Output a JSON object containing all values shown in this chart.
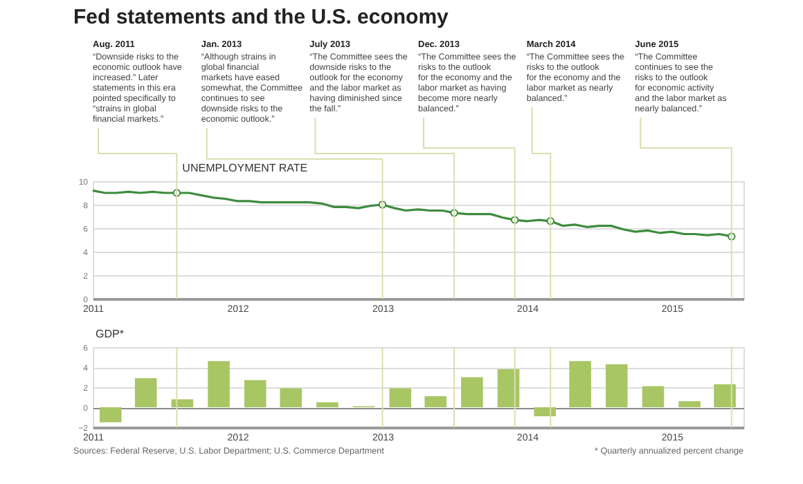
{
  "chart_data": [
    {
      "type": "line",
      "title": "Fed statements and the U.S. economy",
      "ylabel": "UNEMPLOYMENT RATE",
      "x": [
        "2011-01",
        "2011-02",
        "2011-03",
        "2011-04",
        "2011-05",
        "2011-06",
        "2011-07",
        "2011-08",
        "2011-09",
        "2011-10",
        "2011-11",
        "2011-12",
        "2012-01",
        "2012-02",
        "2012-03",
        "2012-04",
        "2012-05",
        "2012-06",
        "2012-07",
        "2012-08",
        "2012-09",
        "2012-10",
        "2012-11",
        "2012-12",
        "2013-01",
        "2013-02",
        "2013-03",
        "2013-04",
        "2013-05",
        "2013-06",
        "2013-07",
        "2013-08",
        "2013-09",
        "2013-10",
        "2013-11",
        "2013-12",
        "2014-01",
        "2014-02",
        "2014-03",
        "2014-04",
        "2014-05",
        "2014-06",
        "2014-07",
        "2014-08",
        "2014-09",
        "2014-10",
        "2014-11",
        "2014-12",
        "2015-01",
        "2015-02",
        "2015-03",
        "2015-04",
        "2015-05",
        "2015-06"
      ],
      "series": [
        {
          "color": "#3d8b3d",
          "values": [
            9.2,
            9.0,
            9.0,
            9.1,
            9.0,
            9.1,
            9.0,
            9.0,
            9.0,
            8.8,
            8.6,
            8.5,
            8.3,
            8.3,
            8.2,
            8.2,
            8.2,
            8.2,
            8.2,
            8.1,
            7.8,
            7.8,
            7.7,
            7.9,
            8.0,
            7.7,
            7.5,
            7.6,
            7.5,
            7.5,
            7.3,
            7.2,
            7.2,
            7.2,
            6.9,
            6.7,
            6.6,
            6.7,
            6.6,
            6.2,
            6.3,
            6.1,
            6.2,
            6.2,
            5.9,
            5.7,
            5.8,
            5.6,
            5.7,
            5.5,
            5.5,
            5.4,
            5.5,
            5.3
          ]
        },
        {
          "type": "scatter",
          "marker": "circle",
          "color": "#3d8b3d",
          "x": [
            "2011-08",
            "2013-01",
            "2013-07",
            "2013-12",
            "2014-03",
            "2015-06"
          ],
          "values": [
            9.0,
            8.0,
            7.3,
            6.7,
            6.6,
            5.3
          ]
        }
      ],
      "xlim": [
        "2011-01",
        "2015-07"
      ],
      "xticks": [
        "2011",
        "2012",
        "2013",
        "2014",
        "2015"
      ],
      "ylim": [
        0,
        10
      ],
      "yticks": [
        0,
        2,
        4,
        6,
        8,
        10
      ],
      "grid": "y",
      "ref_lines": [
        {
          "axis": "x",
          "value": "2011-08",
          "color": "#d9dfae",
          "label": "Aug. 2011\n“Downside risks to the economic outlook have increased.” Later statements in this era pointed specifically to “strains in global financial markets.”"
        },
        {
          "axis": "x",
          "value": "2013-01",
          "color": "#d9dfae",
          "label": "Jan. 2013\n“Although strains in global financial markets have eased somewhat, the Committee continues to see downside risks to the economic outlook.”"
        },
        {
          "axis": "x",
          "value": "2013-07",
          "color": "#d9dfae",
          "label": "July 2013\n“The Committee sees the downside risks to the outlook for the economy and the labor market as having diminished since the fall.”"
        },
        {
          "axis": "x",
          "value": "2013-12",
          "color": "#d9dfae",
          "label": "Dec. 2013\n“The Committee sees the risks to the outlook for the economy and the labor market as having become more nearly balanced.”"
        },
        {
          "axis": "x",
          "value": "2014-03",
          "color": "#d9dfae",
          "label": "March 2014\n“The Committee sees the risks to the outlook for the economy and the labor market as nearly balanced.”"
        },
        {
          "axis": "x",
          "value": "2015-06",
          "color": "#d9dfae",
          "label": "June 2015\n“The Committee continues to see the risks to the outlook for economic activity and the labor market as nearly balanced.”"
        }
      ]
    },
    {
      "type": "bar",
      "ylabel": "GDP*",
      "color": "#a8c664",
      "x": [
        "2011-02-15",
        "2011-05-15",
        "2011-08-15",
        "2011-11-15",
        "2012-02-15",
        "2012-05-15",
        "2012-08-15",
        "2012-11-15",
        "2013-02-15",
        "2013-05-15",
        "2013-08-15",
        "2013-11-15",
        "2014-02-15",
        "2014-05-15",
        "2014-08-15",
        "2014-11-15",
        "2015-02-15",
        "2015-05-15"
      ],
      "values": [
        -1.5,
        2.9,
        0.8,
        4.6,
        2.7,
        1.9,
        0.5,
        0.1,
        1.9,
        1.1,
        3.0,
        3.8,
        -0.9,
        4.6,
        4.3,
        2.1,
        0.6,
        2.3
      ],
      "xlim": [
        "2011-01",
        "2015-07"
      ],
      "xticks": [
        "2011",
        "2012",
        "2013",
        "2014",
        "2015"
      ],
      "ylim": [
        -2,
        6
      ],
      "yticks": [
        -2,
        0,
        2,
        4,
        6
      ],
      "grid": "y",
      "ref_lines": [
        {
          "axis": "x",
          "value": "2011-08",
          "color": "#d9dfae"
        },
        {
          "axis": "x",
          "value": "2013-01",
          "color": "#d9dfae"
        },
        {
          "axis": "x",
          "value": "2013-07",
          "color": "#d9dfae"
        },
        {
          "axis": "x",
          "value": "2013-12",
          "color": "#d9dfae"
        },
        {
          "axis": "x",
          "value": "2014-03",
          "color": "#d9dfae"
        },
        {
          "axis": "x",
          "value": "2015-06",
          "color": "#d9dfae"
        }
      ],
      "annotations": [
        "Sources: Federal Reserve, U.S. Labor Department; U.S. Commerce Department",
        "* Quarterly annualized percent change"
      ]
    }
  ]
}
